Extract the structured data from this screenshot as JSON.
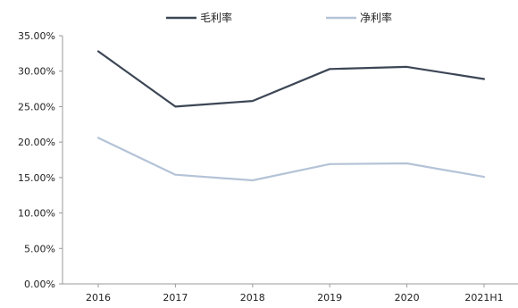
{
  "chart_data": {
    "type": "line",
    "title": "",
    "xlabel": "",
    "ylabel": "",
    "categories": [
      "2016",
      "2017",
      "2018",
      "2019",
      "2020",
      "2021H1"
    ],
    "series": [
      {
        "name": "毛利率",
        "color": "#3c4655",
        "values": [
          32.8,
          25.0,
          25.8,
          30.3,
          30.6,
          28.9
        ]
      },
      {
        "name": "净利率",
        "color": "#b4c3d7",
        "values": [
          20.6,
          15.4,
          14.6,
          16.9,
          17.0,
          15.1
        ]
      }
    ],
    "ylim": [
      0,
      35
    ],
    "yticks": [
      "0.00%",
      "5.00%",
      "10.00%",
      "15.00%",
      "20.00%",
      "25.00%",
      "30.00%",
      "35.00%"
    ],
    "grid": false,
    "legend_position": "top-center"
  }
}
